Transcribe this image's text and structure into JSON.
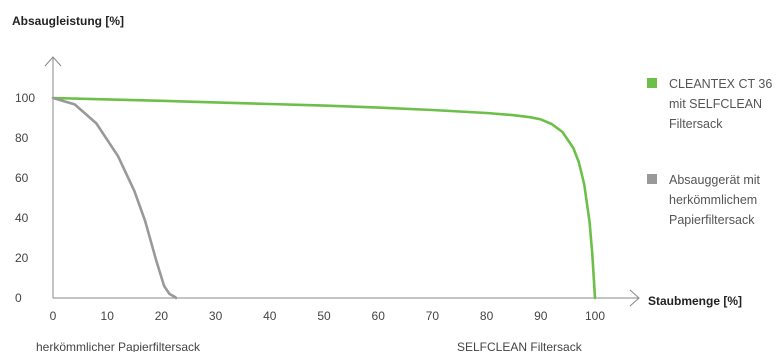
{
  "chart_data": {
    "type": "line",
    "ylabel": "Absaugleistung [%]",
    "xlabel": "Staubmenge [%]",
    "xlim": [
      0,
      105
    ],
    "ylim": [
      0,
      110
    ],
    "x_ticks": [
      0,
      10,
      20,
      30,
      40,
      50,
      60,
      70,
      80,
      90,
      100
    ],
    "y_ticks": [
      0,
      20,
      40,
      60,
      80,
      100
    ],
    "grid": false,
    "legend_position": "right",
    "series": [
      {
        "name": "CLEANTEX CT 36 mit SELFCLEAN Filtersack",
        "legend_lines": [
          "CLEANTEX CT 36",
          "mit SELFCLEAN",
          "Filtersack"
        ],
        "color": "#6cc04a",
        "x": [
          0,
          10,
          20,
          30,
          40,
          50,
          60,
          70,
          80,
          85,
          88,
          90,
          92,
          94,
          96,
          97,
          98,
          99,
          99.5,
          100
        ],
        "y": [
          100,
          99.3,
          98.6,
          97.8,
          97.0,
          96.2,
          95.2,
          94.0,
          92.5,
          91.4,
          90.4,
          89.3,
          87.0,
          83.0,
          75.0,
          68.0,
          57.0,
          38.0,
          22.0,
          0
        ]
      },
      {
        "name": "Absauggerät mit herkömmlichem Papierfiltersack",
        "legend_lines": [
          "Absauggerät mit",
          "herkömmlichem",
          "Papierfiltersack"
        ],
        "color": "#999999",
        "x": [
          0,
          4,
          8,
          12,
          15,
          17,
          19,
          20.5,
          21.5,
          22.2,
          22.6,
          22.7
        ],
        "y": [
          100,
          96.8,
          87.3,
          70.9,
          53.6,
          38.5,
          19.2,
          6.0,
          2.0,
          1.0,
          0.3,
          0
        ]
      }
    ],
    "annotations": [
      {
        "text": "herkömmlicher Papierfiltersack",
        "near_x": 0
      },
      {
        "text": "SELFCLEAN Filtersack",
        "near_x": 100
      }
    ]
  }
}
